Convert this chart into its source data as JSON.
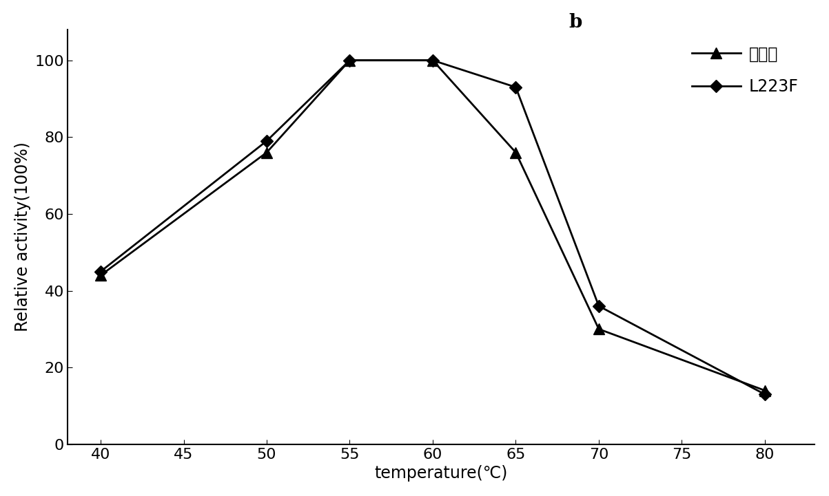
{
  "x": [
    40,
    50,
    55,
    60,
    65,
    70,
    80
  ],
  "wildtype_y": [
    44,
    76,
    100,
    100,
    76,
    30,
    14
  ],
  "l223f_y": [
    45,
    79,
    100,
    100,
    93,
    36,
    13
  ],
  "wildtype_label": "野生型",
  "l223f_label": "L223F",
  "xlabel": "temperature（℃）",
  "ylabel": "Relative activity(100%)",
  "xlim": [
    38,
    83
  ],
  "ylim": [
    0,
    108
  ],
  "xticks": [
    40,
    45,
    50,
    55,
    60,
    65,
    70,
    75,
    80
  ],
  "yticks": [
    0,
    20,
    40,
    60,
    80,
    100
  ],
  "line_color": "#000000",
  "background_color": "#ffffff",
  "label_b": "b",
  "title_fontsize": 20,
  "axis_fontsize": 17,
  "tick_fontsize": 16,
  "legend_fontsize": 17
}
